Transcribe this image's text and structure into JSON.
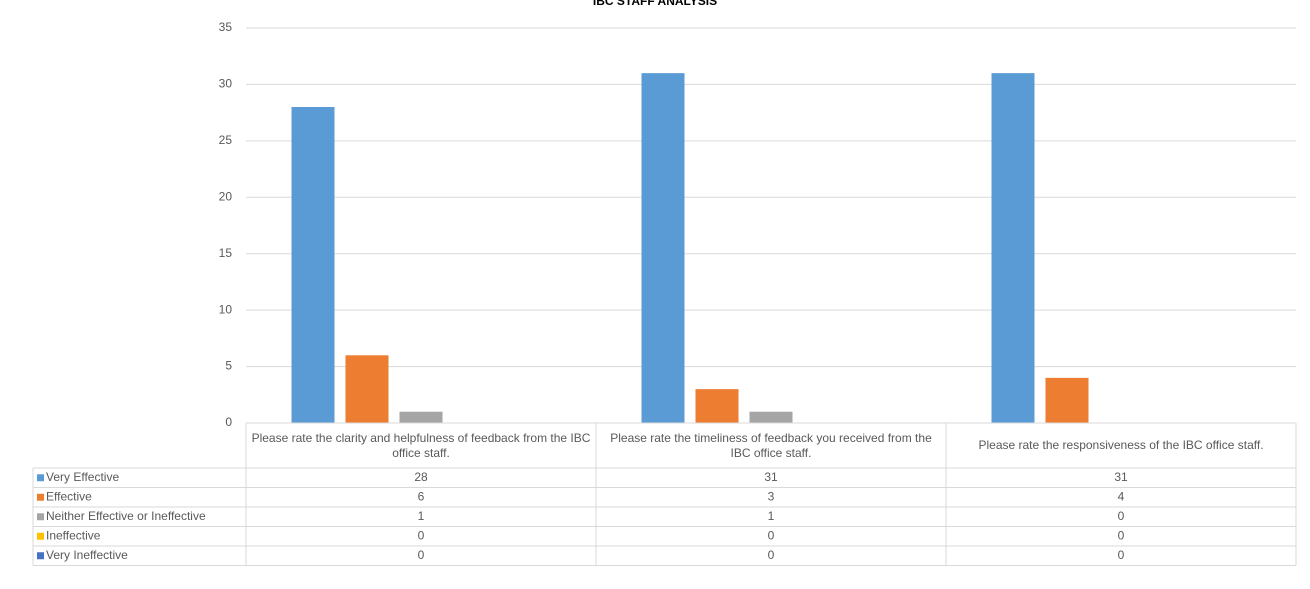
{
  "chart_data": {
    "type": "bar",
    "title": "IBC STAFF ANALYSIS",
    "categories": [
      "Please rate the clarity and helpfulness of feedback from the IBC office staff.",
      "Please rate the timeliness of feedback you received from the IBC office staff.",
      "Please rate the responsiveness of the IBC office staff."
    ],
    "series": [
      {
        "name": "Very Effective",
        "color": "#5b9bd5",
        "values": [
          28,
          31,
          31
        ]
      },
      {
        "name": "Effective",
        "color": "#ed7d31",
        "values": [
          6,
          3,
          4
        ]
      },
      {
        "name": "Neither Effective or Ineffective",
        "color": "#a5a5a5",
        "values": [
          1,
          1,
          0
        ]
      },
      {
        "name": "Ineffective",
        "color": "#ffc000",
        "values": [
          0,
          0,
          0
        ]
      },
      {
        "name": "Very Ineffective",
        "color": "#4472c4",
        "values": [
          0,
          0,
          0
        ]
      }
    ],
    "ylim": [
      0,
      35
    ],
    "yticks": [
      0,
      5,
      10,
      15,
      20,
      25,
      30,
      35
    ],
    "grid": true
  }
}
